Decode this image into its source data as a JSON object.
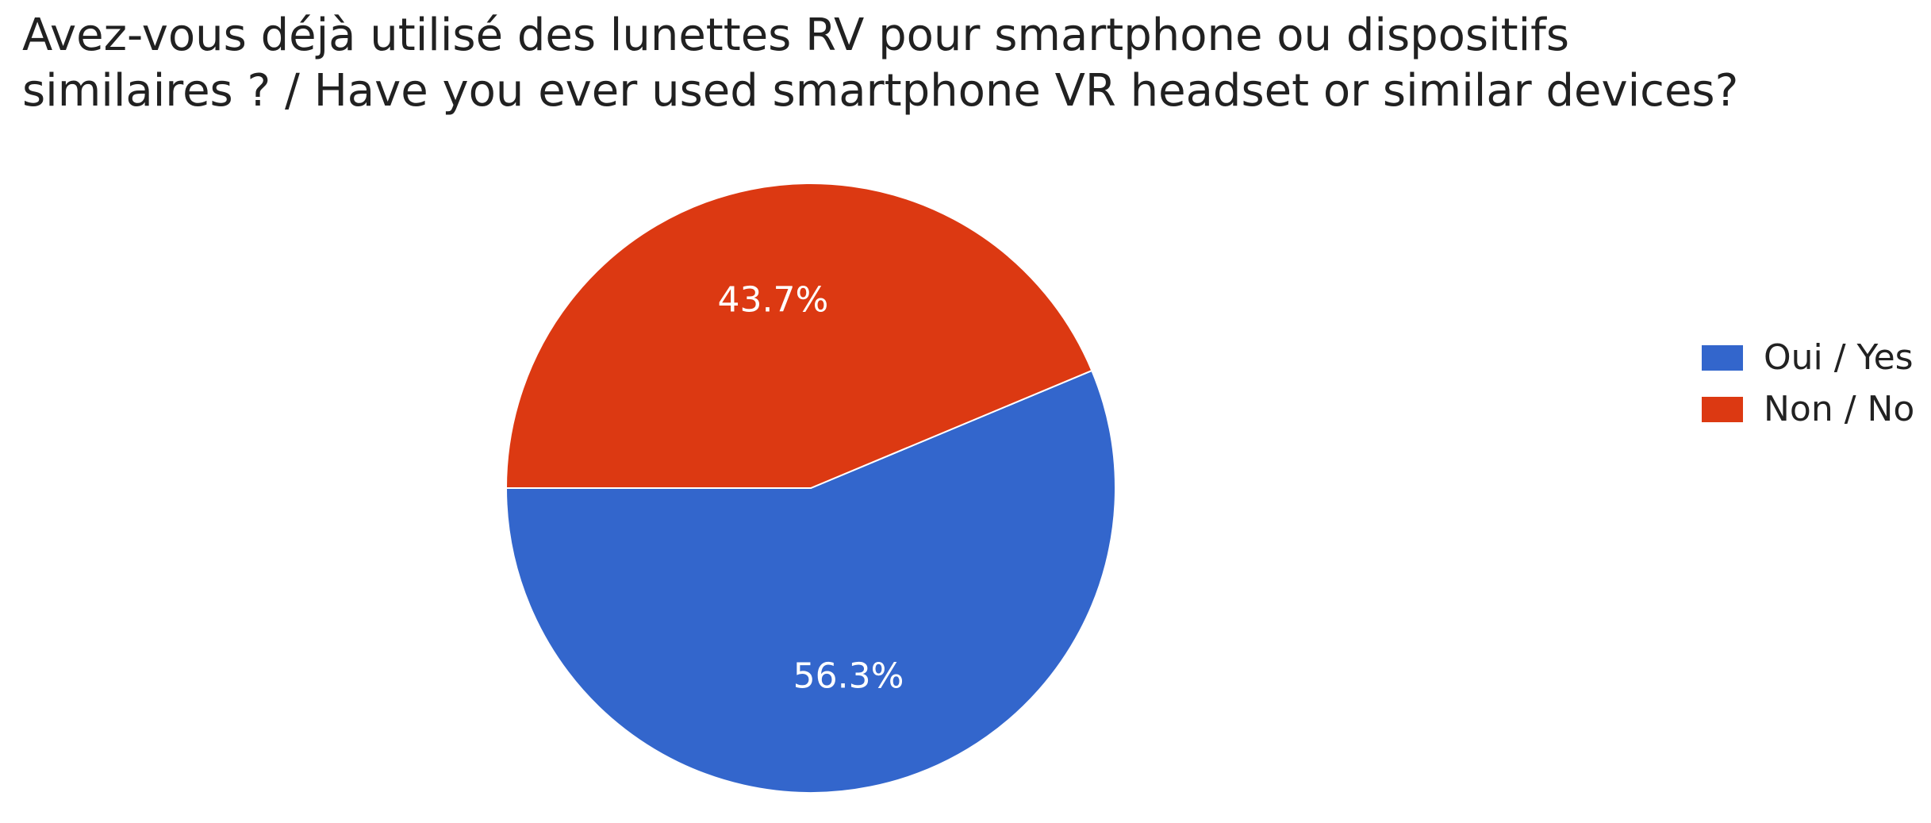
{
  "chart_data": {
    "type": "pie",
    "title_lines": [
      "Avez-vous déjà utilisé des lunettes RV pour smartphone ou dispositifs",
      "similaires ? / Have you ever used smartphone VR headset or similar devices?"
    ],
    "slices": [
      {
        "label": "Oui / Yes",
        "value": 56.3,
        "value_label": "56.3%",
        "color": "#3366cc"
      },
      {
        "label": "Non / No",
        "value": 43.7,
        "value_label": "43.7%",
        "color": "#dc3912"
      }
    ],
    "legend_position": "right"
  }
}
